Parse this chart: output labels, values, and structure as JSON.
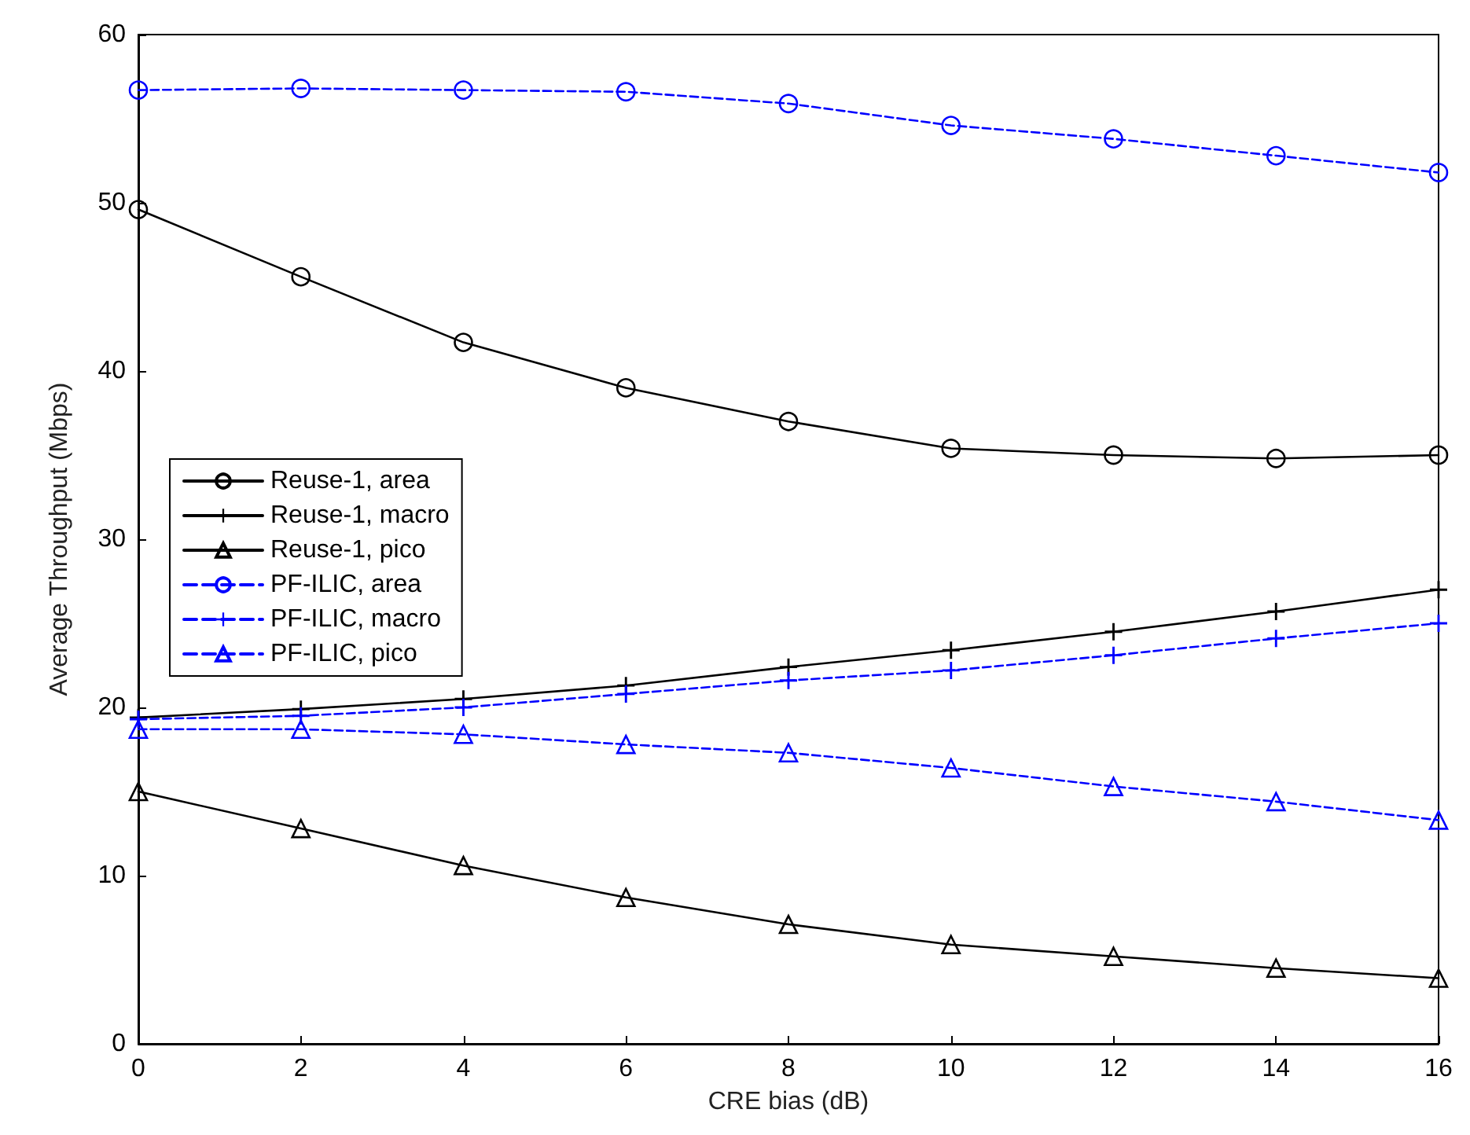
{
  "chart_data": {
    "type": "line",
    "xlabel": "CRE bias (dB)",
    "ylabel": "Average Throughput (Mbps)",
    "x": [
      0,
      2,
      4,
      6,
      8,
      10,
      12,
      14,
      16
    ],
    "xlim": [
      0,
      16
    ],
    "xticks": [
      0,
      2,
      4,
      6,
      8,
      10,
      12,
      14,
      16
    ],
    "ylim": [
      0,
      60
    ],
    "yticks": [
      0,
      10,
      20,
      30,
      40,
      50,
      60
    ],
    "legend": "left",
    "series": [
      {
        "name": "Reuse-1, area",
        "color": "#000000",
        "marker": "circle",
        "line_style": "solid",
        "values": [
          49.6,
          45.6,
          41.7,
          39.0,
          37.0,
          35.4,
          35.0,
          34.8,
          35.0
        ]
      },
      {
        "name": "Reuse-1, macro",
        "color": "#000000",
        "marker": "cross",
        "line_style": "solid",
        "values": [
          19.4,
          19.9,
          20.5,
          21.3,
          22.4,
          23.4,
          24.5,
          25.7,
          27.0
        ]
      },
      {
        "name": "Reuse-1, pico",
        "color": "#000000",
        "marker": "triangle",
        "line_style": "solid",
        "values": [
          15.0,
          12.8,
          10.6,
          8.7,
          7.1,
          5.9,
          5.2,
          4.5,
          3.9
        ]
      },
      {
        "name": "PF-ILIC, area",
        "color": "#0000ff",
        "marker": "circle",
        "line_style": "dashed",
        "values": [
          56.7,
          56.8,
          56.7,
          56.6,
          55.9,
          54.6,
          53.8,
          52.8,
          51.8
        ]
      },
      {
        "name": "PF-ILIC, macro",
        "color": "#0000ff",
        "marker": "cross",
        "line_style": "dashed",
        "values": [
          19.3,
          19.5,
          20.0,
          20.8,
          21.6,
          22.2,
          23.1,
          24.1,
          25.0
        ]
      },
      {
        "name": "PF-ILIC, pico",
        "color": "#0000ff",
        "marker": "triangle",
        "line_style": "dashed",
        "values": [
          18.7,
          18.7,
          18.4,
          17.8,
          17.3,
          16.4,
          15.3,
          14.4,
          13.3
        ]
      }
    ]
  }
}
